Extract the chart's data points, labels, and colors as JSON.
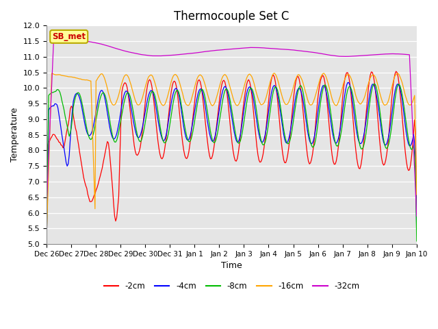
{
  "title": "Thermocouple Set C",
  "xlabel": "Time",
  "ylabel": "Temperature",
  "ylim": [
    5.0,
    12.0
  ],
  "xtick_labels": [
    "Dec 26",
    "Dec 27",
    "Dec 28",
    "Dec 29",
    "Dec 30",
    "Dec 31",
    "Jan 1",
    "Jan 2",
    "Jan 3",
    "Jan 4",
    "Jan 5",
    "Jan 6",
    "Jan 7",
    "Jan 8",
    "Jan 9",
    "Jan 10"
  ],
  "line_colors": {
    "2cm": "#ff0000",
    "4cm": "#0000ff",
    "8cm": "#00bb00",
    "16cm": "#ffa500",
    "32cm": "#cc00cc"
  },
  "legend_labels": [
    "-2cm",
    "-4cm",
    "-8cm",
    "-16cm",
    "-32cm"
  ],
  "sb_met_box_color": "#ffff99",
  "sb_met_border_color": "#bbaa00",
  "sb_met_text_color": "#cc0000",
  "plot_bg": "#e5e5e5",
  "title_fontsize": 12,
  "tick_fontsize": 8,
  "label_fontsize": 9
}
